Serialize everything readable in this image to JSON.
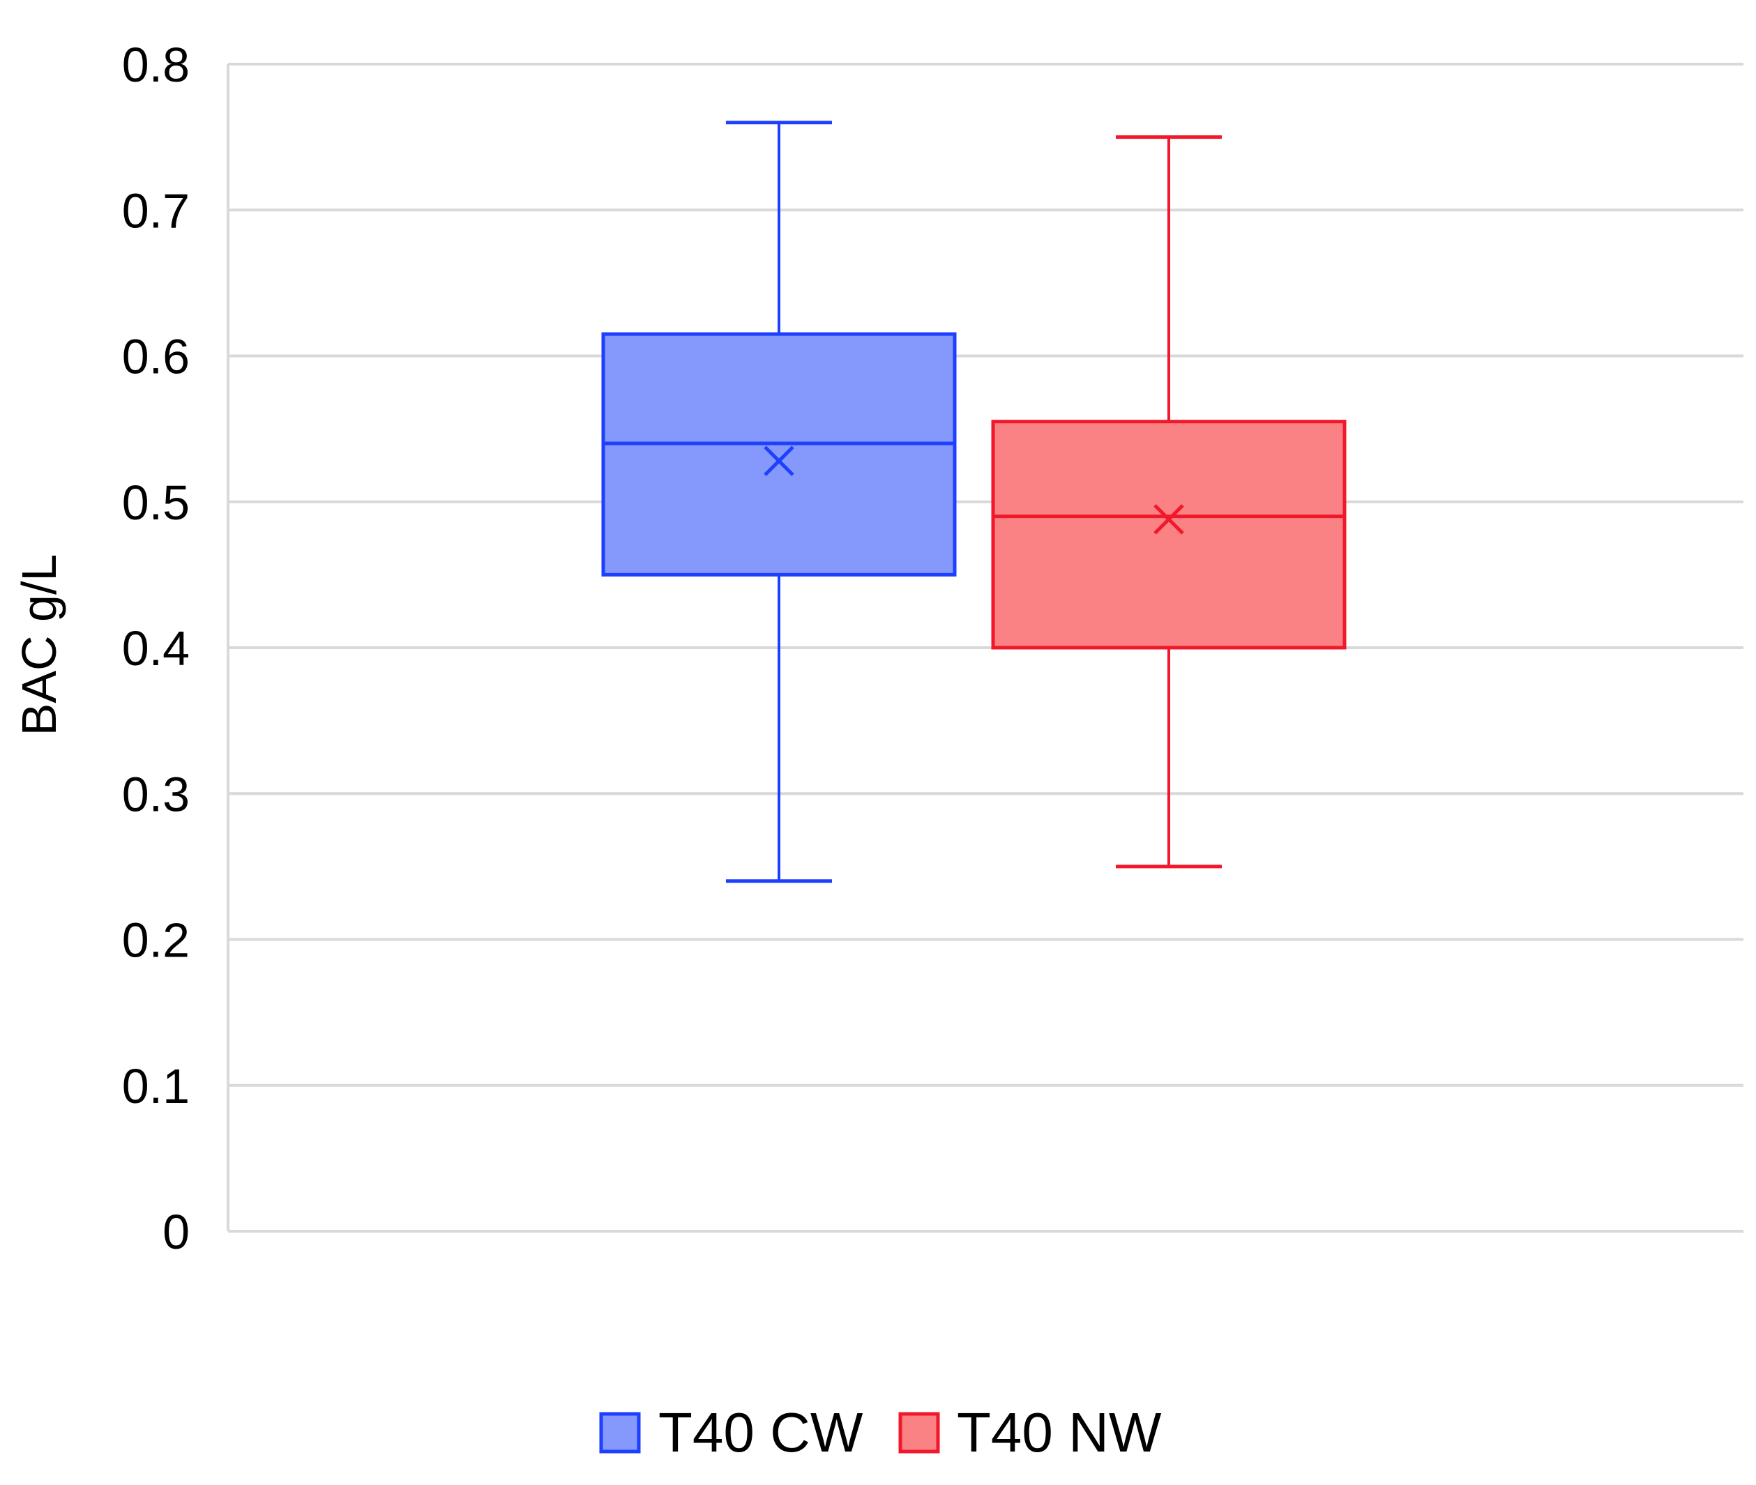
{
  "chart_data": {
    "type": "boxplot",
    "ylabel": "BAC g/L",
    "xlabel": "",
    "ylim": [
      0,
      0.8
    ],
    "yticks": [
      0,
      0.1,
      0.2,
      0.3,
      0.4,
      0.5,
      0.6,
      0.7,
      0.8
    ],
    "ytick_labels": [
      "0",
      "0.1",
      "0.2",
      "0.3",
      "0.4",
      "0.5",
      "0.6",
      "0.7",
      "0.8"
    ],
    "grid": true,
    "legend_position": "bottom",
    "series": [
      {
        "name": "T40 CW",
        "color": "#1f3fff",
        "fill": "#8499fb",
        "whisker_low": 0.24,
        "q1": 0.45,
        "median": 0.54,
        "q3": 0.615,
        "whisker_high": 0.76,
        "mean": 0.528
      },
      {
        "name": "T40 NW",
        "color": "#f0182a",
        "fill": "#fb8284",
        "whisker_low": 0.25,
        "q1": 0.4,
        "median": 0.49,
        "q3": 0.555,
        "whisker_high": 0.75,
        "mean": 0.488
      }
    ]
  }
}
